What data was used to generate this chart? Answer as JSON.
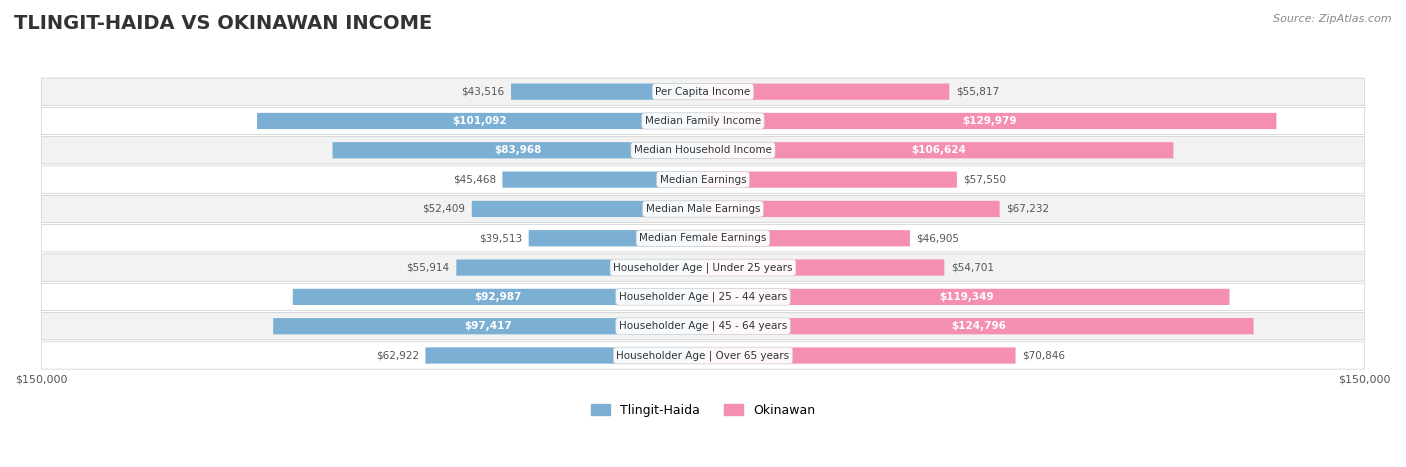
{
  "title": "TLINGIT-HAIDA VS OKINAWAN INCOME",
  "source": "Source: ZipAtlas.com",
  "categories": [
    "Per Capita Income",
    "Median Family Income",
    "Median Household Income",
    "Median Earnings",
    "Median Male Earnings",
    "Median Female Earnings",
    "Householder Age | Under 25 years",
    "Householder Age | 25 - 44 years",
    "Householder Age | 45 - 64 years",
    "Householder Age | Over 65 years"
  ],
  "tlingit_values": [
    43516,
    101092,
    83968,
    45468,
    52409,
    39513,
    55914,
    92987,
    97417,
    62922
  ],
  "okinawan_values": [
    55817,
    129979,
    106624,
    57550,
    67232,
    46905,
    54701,
    119349,
    124796,
    70846
  ],
  "tlingit_labels": [
    "$43,516",
    "$101,092",
    "$83,968",
    "$45,468",
    "$52,409",
    "$39,513",
    "$55,914",
    "$92,987",
    "$97,417",
    "$62,922"
  ],
  "okinawan_labels": [
    "$55,817",
    "$129,979",
    "$106,624",
    "$57,550",
    "$67,232",
    "$46,905",
    "$54,701",
    "$119,349",
    "$124,796",
    "$70,846"
  ],
  "tlingit_color": "#7bafd4",
  "okinawan_color": "#f48fb1",
  "tlingit_label_color_inside": "#ffffff",
  "tlingit_label_color_outside": "#555555",
  "okinawan_label_color_inside": "#ffffff",
  "okinawan_label_color_outside": "#555555",
  "max_value": 150000,
  "background_row_color": "#f2f2f2",
  "background_alt_color": "#ffffff",
  "tlingit_inside_threshold": 80000,
  "okinawan_inside_threshold": 80000
}
